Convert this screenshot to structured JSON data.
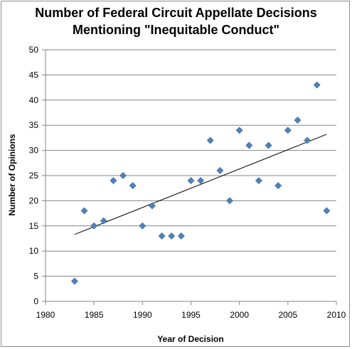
{
  "chart_data": {
    "type": "scatter",
    "title_lines": [
      "Number of Federal Circuit Appellate Decisions",
      "Mentioning \"Inequitable Conduct\""
    ],
    "xlabel": "Year of Decision",
    "ylabel": "Number of Opinions",
    "xlim": [
      1980,
      2010
    ],
    "ylim": [
      0,
      50
    ],
    "xticks": [
      "1980",
      "1985",
      "1990",
      "1995",
      "2000",
      "2005",
      "2010"
    ],
    "yticks": [
      "0",
      "5",
      "10",
      "15",
      "20",
      "25",
      "30",
      "35",
      "40",
      "45",
      "50"
    ],
    "grid": "horizontal",
    "legend": "none",
    "marker_color": "#4F81BD",
    "series": [
      {
        "x": [
          1983,
          1984,
          1985,
          1986,
          1987,
          1988,
          1989,
          1990,
          1991,
          1992,
          1993,
          1994,
          1995,
          1996,
          1997,
          1998,
          1999,
          2000,
          2001,
          2002,
          2003,
          2004,
          2005,
          2006,
          2007,
          2008,
          2009
        ],
        "y": [
          4,
          18,
          15,
          16,
          24,
          25,
          23,
          15,
          19,
          13,
          13,
          13,
          24,
          24,
          32,
          26,
          20,
          34,
          31,
          24,
          31,
          23,
          34,
          36,
          32,
          43,
          18
        ]
      }
    ],
    "trendline": {
      "type": "linear",
      "x": [
        1983,
        2009
      ],
      "y": [
        13.3,
        33.2
      ]
    }
  }
}
